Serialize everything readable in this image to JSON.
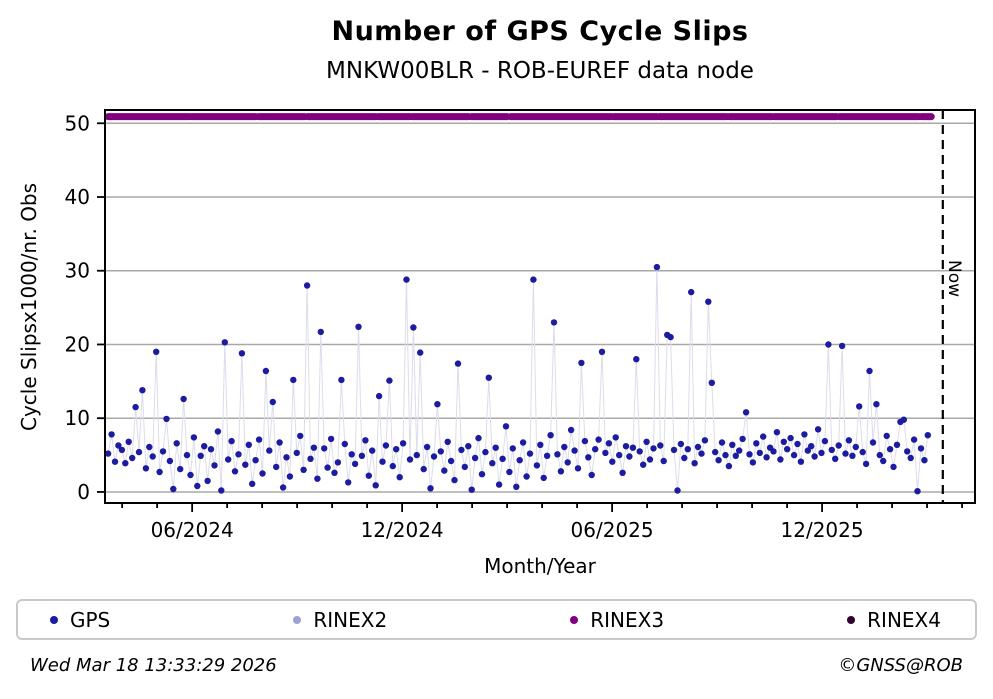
{
  "title": "Number of GPS Cycle Slips",
  "subtitle": "MNKW00BLR - ROB-EUREF data node",
  "footer": {
    "timestamp": "Wed Mar 18 13:33:29 2026",
    "credit": "©GNSS@ROB"
  },
  "legend": {
    "items": [
      {
        "label": "GPS",
        "color": "#1c1ca0"
      },
      {
        "label": "RINEX2",
        "color": "#a0a0d8"
      },
      {
        "label": "RINEX3",
        "color": "#800080"
      },
      {
        "label": "RINEX4",
        "color": "#320232"
      }
    ]
  },
  "chart_data": {
    "type": "scatter",
    "title": "Number of GPS Cycle Slips",
    "subtitle": "MNKW00BLR - ROB-EUREF data node",
    "xlabel": "Month/Year",
    "ylabel": "Cycle Slipsx1000/nr. Obs",
    "x_unit": "months since 2024-01-01",
    "xlim": [
      2.51,
      27.37
    ],
    "ylim": [
      -1.5,
      51.8
    ],
    "grid": "horizontal",
    "grid_color": "#a8a8a8",
    "axis_color": "#000000",
    "yticks": [
      0,
      10,
      20,
      30,
      40,
      50
    ],
    "x_major_ticks": [
      {
        "m": 5,
        "label": "06/2024"
      },
      {
        "m": 11,
        "label": "12/2024"
      },
      {
        "m": 17,
        "label": "06/2025"
      },
      {
        "m": 23,
        "label": "12/2025"
      }
    ],
    "x_minor_tick_every": 1,
    "now_line": {
      "m": 26.45,
      "label": "Now"
    },
    "series": [
      {
        "name": "GPS",
        "marker_color": "#1c1ca0",
        "line_color": "#dcdcec",
        "marker_radius": 3.2,
        "x_start": 2.6,
        "x_step": 0.098,
        "values": [
          5.2,
          7.8,
          4.1,
          6.3,
          5.7,
          3.9,
          6.8,
          4.6,
          11.5,
          5.4,
          13.8,
          3.2,
          6.1,
          4.8,
          19.0,
          2.7,
          5.5,
          9.9,
          4.2,
          0.4,
          6.6,
          3.1,
          12.6,
          5.0,
          2.3,
          7.4,
          0.8,
          4.9,
          6.2,
          1.5,
          5.8,
          3.6,
          8.2,
          0.2,
          20.3,
          4.4,
          6.9,
          2.8,
          5.1,
          18.8,
          3.7,
          6.4,
          1.1,
          4.3,
          7.1,
          2.5,
          16.4,
          5.6,
          12.2,
          3.4,
          6.7,
          0.6,
          4.7,
          2.1,
          15.2,
          5.3,
          7.6,
          3.0,
          28.0,
          4.5,
          6.0,
          1.8,
          21.7,
          5.9,
          3.3,
          7.2,
          2.6,
          4.0,
          15.2,
          6.5,
          1.3,
          5.1,
          3.8,
          22.4,
          4.9,
          7.0,
          2.2,
          5.6,
          0.9,
          13.0,
          4.1,
          6.3,
          15.1,
          3.5,
          5.8,
          2.0,
          6.6,
          28.8,
          4.4,
          22.3,
          5.0,
          18.9,
          3.1,
          6.1,
          0.5,
          4.8,
          11.9,
          5.5,
          2.9,
          6.8,
          4.2,
          1.6,
          17.4,
          5.7,
          3.4,
          6.2,
          0.3,
          4.6,
          7.3,
          2.4,
          5.4,
          15.5,
          3.9,
          6.0,
          1.0,
          4.5,
          8.9,
          2.7,
          5.9,
          0.7,
          4.3,
          6.7,
          2.1,
          5.2,
          28.8,
          3.6,
          6.4,
          1.9,
          4.9,
          7.7,
          23.0,
          5.1,
          2.8,
          6.1,
          4.0,
          8.4,
          5.6,
          3.2,
          17.5,
          6.9,
          4.7,
          2.3,
          5.8,
          7.1,
          19.0,
          5.3,
          6.6,
          4.1,
          7.4,
          5.0,
          2.6,
          6.2,
          4.8,
          6.0,
          18.0,
          5.5,
          3.7,
          6.8,
          4.4,
          5.9,
          30.5,
          6.3,
          4.2,
          21.3,
          21.0,
          5.7,
          0.2,
          6.5,
          4.6,
          5.8,
          27.1,
          3.9,
          6.1,
          5.2,
          7.0,
          25.8,
          14.8,
          5.4,
          4.3,
          6.7,
          5.0,
          3.5,
          6.4,
          4.9,
          5.6,
          7.2,
          10.8,
          5.1,
          4.0,
          6.6,
          5.3,
          7.5,
          4.7,
          6.0,
          5.5,
          8.1,
          4.4,
          6.8,
          5.8,
          7.3,
          5.0,
          6.5,
          4.1,
          7.8,
          5.6,
          6.2,
          4.8,
          8.5,
          5.3,
          6.9,
          20.0,
          5.7,
          4.5,
          6.3,
          19.8,
          5.2,
          7.0,
          4.9,
          6.1,
          11.6,
          5.4,
          3.8,
          16.4,
          6.7,
          11.9,
          5.0,
          4.2,
          7.6,
          5.8,
          3.4,
          6.4,
          9.5,
          9.8,
          5.5,
          4.6,
          7.1,
          0.1,
          5.9,
          4.3,
          7.7
        ]
      },
      {
        "name": "RINEX2",
        "marker_color": "#a0a0d8",
        "values": []
      },
      {
        "name": "RINEX3",
        "marker_color": "#800080",
        "band_value": 50.9,
        "band_thickness": 7,
        "segments": [
          [
            2.6,
            4.92
          ],
          [
            4.98,
            6.82
          ],
          [
            6.9,
            8.22
          ],
          [
            8.3,
            10.25
          ],
          [
            10.32,
            11.22
          ],
          [
            11.28,
            12.9
          ],
          [
            12.98,
            14.0
          ],
          [
            14.1,
            16.98
          ],
          [
            17.05,
            18.28
          ],
          [
            18.35,
            20.28
          ],
          [
            20.35,
            21.57
          ],
          [
            21.64,
            23.42
          ],
          [
            23.5,
            25.77
          ],
          [
            25.84,
            26.12
          ]
        ]
      },
      {
        "name": "RINEX4",
        "marker_color": "#320232",
        "values": []
      }
    ]
  }
}
